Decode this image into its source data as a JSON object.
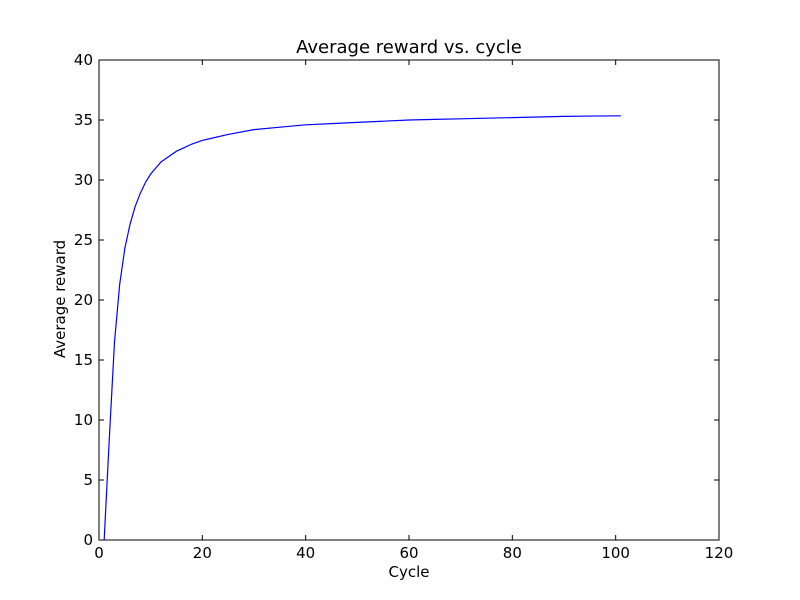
{
  "chart_data": {
    "type": "line",
    "title": "Average reward vs. cycle",
    "xlabel": "Cycle",
    "ylabel": "Average reward",
    "xlim": [
      0,
      120
    ],
    "ylim": [
      0,
      40
    ],
    "xticks": [
      0,
      20,
      40,
      60,
      80,
      100,
      120
    ],
    "yticks": [
      0,
      5,
      10,
      15,
      20,
      25,
      30,
      35,
      40
    ],
    "xtick_labels": [
      "0",
      "20",
      "40",
      "60",
      "80",
      "100",
      "120"
    ],
    "ytick_labels": [
      "0",
      "5",
      "10",
      "15",
      "20",
      "25",
      "30",
      "35",
      "40"
    ],
    "grid": false,
    "legend": false,
    "series": [
      {
        "color": "#0000ff",
        "x": [
          1,
          2,
          3,
          4,
          5,
          6,
          7,
          8,
          9,
          10,
          11,
          12,
          13,
          14,
          15,
          16,
          18,
          20,
          22,
          25,
          30,
          35,
          40,
          45,
          50,
          55,
          60,
          65,
          70,
          75,
          80,
          85,
          90,
          95,
          101
        ],
        "y": [
          0,
          8.5,
          16.5,
          21.3,
          24.3,
          26.3,
          27.8,
          28.9,
          29.8,
          30.5,
          31.0,
          31.5,
          31.8,
          32.1,
          32.4,
          32.6,
          33.0,
          33.3,
          33.5,
          33.8,
          34.2,
          34.4,
          34.6,
          34.7,
          34.8,
          34.9,
          35.0,
          35.05,
          35.1,
          35.15,
          35.2,
          35.25,
          35.3,
          35.33,
          35.35
        ]
      }
    ]
  }
}
